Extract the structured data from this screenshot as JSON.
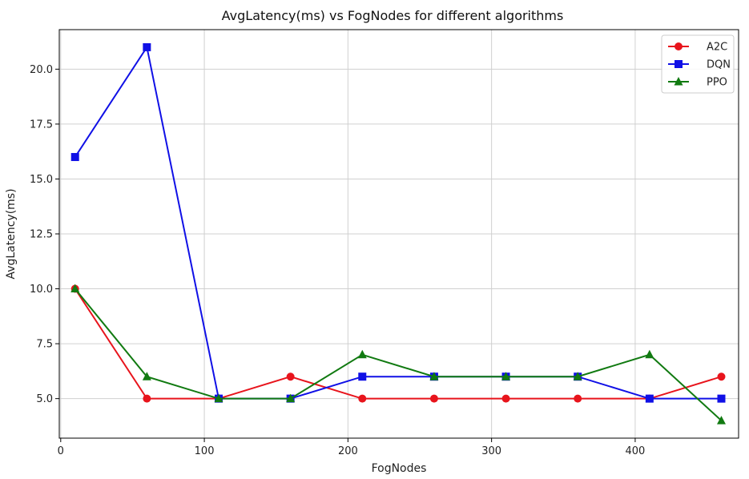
{
  "chart_data": {
    "type": "line",
    "title": "AvgLatency(ms) vs FogNodes for different algorithms",
    "xlabel": "FogNodes",
    "ylabel": "AvgLatency(ms)",
    "x": [
      10,
      60,
      110,
      160,
      210,
      260,
      310,
      360,
      410,
      460
    ],
    "xlim": [
      -1,
      472
    ],
    "ylim": [
      3.2,
      21.8
    ],
    "xticks": [
      0,
      100,
      200,
      300,
      400
    ],
    "xtick_labels": [
      "0",
      "100",
      "200",
      "300",
      "400"
    ],
    "yticks": [
      5.0,
      7.5,
      10.0,
      12.5,
      15.0,
      17.5,
      20.0
    ],
    "ytick_labels": [
      "5.0",
      "7.5",
      "10.0",
      "12.5",
      "15.0",
      "17.5",
      "20.0"
    ],
    "grid": true,
    "legend_position": "top-right",
    "series": [
      {
        "name": "A2C",
        "color": "#e8141c",
        "marker": "circle",
        "values": [
          10,
          5,
          5,
          6,
          5,
          5,
          5,
          5,
          5,
          6
        ]
      },
      {
        "name": "DQN",
        "color": "#1010e6",
        "marker": "square",
        "values": [
          16,
          21,
          5,
          5,
          6,
          6,
          6,
          6,
          5,
          5
        ]
      },
      {
        "name": "PPO",
        "color": "#117a11",
        "marker": "triangle",
        "values": [
          10,
          6,
          5,
          5,
          7,
          6,
          6,
          6,
          7,
          4
        ]
      }
    ]
  }
}
